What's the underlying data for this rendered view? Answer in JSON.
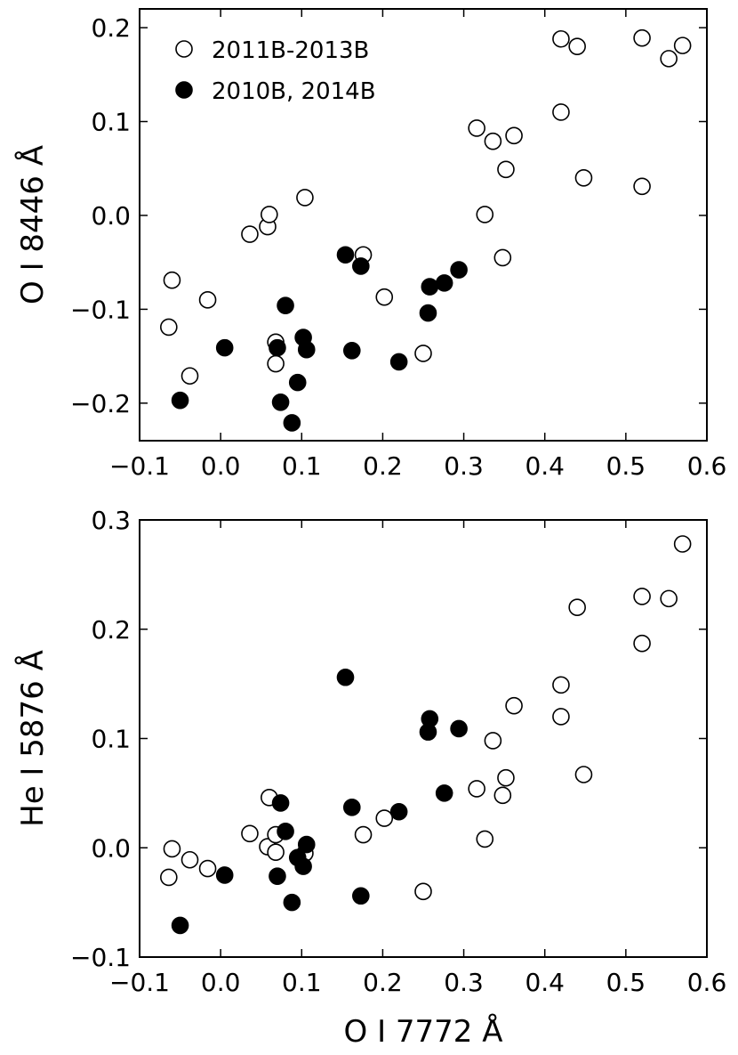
{
  "chart_data": [
    {
      "type": "scatter",
      "title": "",
      "xlabel": "",
      "ylabel": "O I 8446 Å",
      "xlim": [
        -0.1,
        0.6
      ],
      "ylim": [
        -0.24,
        0.22
      ],
      "xticks": [
        "−0.1",
        "0.0",
        "0.1",
        "0.2",
        "0.3",
        "0.4",
        "0.5",
        "0.6"
      ],
      "yticks": [
        "−0.2",
        "−0.1",
        "0.0",
        "0.1",
        "0.2"
      ],
      "grid": false,
      "legend": {
        "placement": "top-left",
        "entries": [
          "2011B-2013B",
          "2010B, 2014B"
        ]
      },
      "series": [
        {
          "name": "2011B-2013B",
          "marker": "open-circle",
          "points": [
            [
              -0.064,
              -0.119
            ],
            [
              -0.06,
              -0.069
            ],
            [
              -0.038,
              -0.171
            ],
            [
              -0.016,
              -0.09
            ],
            [
              0.036,
              -0.02
            ],
            [
              0.058,
              -0.012
            ],
            [
              0.06,
              0.001
            ],
            [
              0.068,
              -0.135
            ],
            [
              0.068,
              -0.158
            ],
            [
              0.104,
              0.019
            ],
            [
              0.176,
              -0.042
            ],
            [
              0.202,
              -0.087
            ],
            [
              0.25,
              -0.147
            ],
            [
              0.316,
              0.093
            ],
            [
              0.326,
              0.001
            ],
            [
              0.336,
              0.079
            ],
            [
              0.348,
              -0.045
            ],
            [
              0.352,
              0.049
            ],
            [
              0.362,
              0.085
            ],
            [
              0.42,
              0.11
            ],
            [
              0.42,
              0.188
            ],
            [
              0.44,
              0.18
            ],
            [
              0.448,
              0.04
            ],
            [
              0.52,
              0.031
            ],
            [
              0.52,
              0.189
            ],
            [
              0.553,
              0.167
            ],
            [
              0.57,
              0.181
            ]
          ]
        },
        {
          "name": "2010B, 2014B",
          "marker": "filled-circle",
          "points": [
            [
              -0.05,
              -0.197
            ],
            [
              0.005,
              -0.141
            ],
            [
              0.07,
              -0.141
            ],
            [
              0.074,
              -0.199
            ],
            [
              0.08,
              -0.096
            ],
            [
              0.088,
              -0.221
            ],
            [
              0.095,
              -0.178
            ],
            [
              0.102,
              -0.13
            ],
            [
              0.106,
              -0.143
            ],
            [
              0.154,
              -0.042
            ],
            [
              0.162,
              -0.144
            ],
            [
              0.173,
              -0.054
            ],
            [
              0.22,
              -0.156
            ],
            [
              0.256,
              -0.104
            ],
            [
              0.258,
              -0.076
            ],
            [
              0.276,
              -0.072
            ],
            [
              0.294,
              -0.058
            ]
          ]
        }
      ]
    },
    {
      "type": "scatter",
      "title": "",
      "xlabel": "O I 7772 Å",
      "ylabel": "He I 5876 Å",
      "xlim": [
        -0.1,
        0.6
      ],
      "ylim": [
        -0.1,
        0.3
      ],
      "xticks": [
        "−0.1",
        "0.0",
        "0.1",
        "0.2",
        "0.3",
        "0.4",
        "0.5",
        "0.6"
      ],
      "yticks": [
        "−0.1",
        "0.0",
        "0.1",
        "0.2",
        "0.3"
      ],
      "grid": false,
      "series": [
        {
          "name": "2011B-2013B",
          "marker": "open-circle",
          "points": [
            [
              -0.064,
              -0.027
            ],
            [
              -0.06,
              -0.001
            ],
            [
              -0.038,
              -0.011
            ],
            [
              -0.016,
              -0.019
            ],
            [
              0.036,
              0.013
            ],
            [
              0.058,
              0.001
            ],
            [
              0.06,
              0.046
            ],
            [
              0.068,
              -0.004
            ],
            [
              0.068,
              0.012
            ],
            [
              0.104,
              -0.005
            ],
            [
              0.176,
              0.012
            ],
            [
              0.202,
              0.027
            ],
            [
              0.25,
              -0.04
            ],
            [
              0.316,
              0.054
            ],
            [
              0.326,
              0.008
            ],
            [
              0.336,
              0.098
            ],
            [
              0.348,
              0.048
            ],
            [
              0.352,
              0.064
            ],
            [
              0.362,
              0.13
            ],
            [
              0.42,
              0.12
            ],
            [
              0.42,
              0.149
            ],
            [
              0.44,
              0.22
            ],
            [
              0.448,
              0.067
            ],
            [
              0.52,
              0.187
            ],
            [
              0.52,
              0.23
            ],
            [
              0.553,
              0.228
            ],
            [
              0.57,
              0.278
            ]
          ]
        },
        {
          "name": "2010B, 2014B",
          "marker": "filled-circle",
          "points": [
            [
              -0.05,
              -0.071
            ],
            [
              0.005,
              -0.025
            ],
            [
              0.07,
              -0.026
            ],
            [
              0.074,
              0.041
            ],
            [
              0.08,
              0.015
            ],
            [
              0.088,
              -0.05
            ],
            [
              0.095,
              -0.009
            ],
            [
              0.102,
              -0.017
            ],
            [
              0.106,
              0.003
            ],
            [
              0.154,
              0.156
            ],
            [
              0.162,
              0.037
            ],
            [
              0.173,
              -0.044
            ],
            [
              0.22,
              0.033
            ],
            [
              0.256,
              0.106
            ],
            [
              0.258,
              0.118
            ],
            [
              0.276,
              0.05
            ],
            [
              0.294,
              0.109
            ]
          ]
        }
      ]
    }
  ]
}
